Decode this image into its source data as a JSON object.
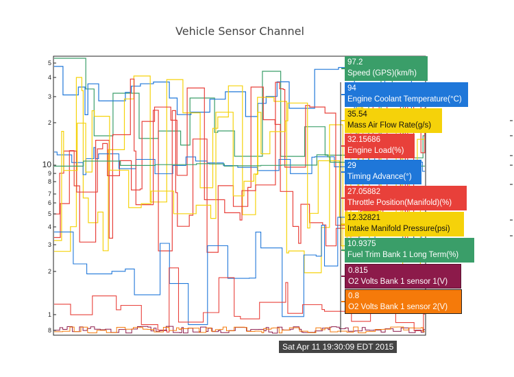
{
  "chart_data": {
    "type": "line",
    "title": "Vehicle Sensor Channel",
    "yscale": "log",
    "ylim": [
      0.75,
      5.6
    ],
    "minor_ticks": [
      "8",
      "1",
      "2",
      "3",
      "4",
      "5",
      "6",
      "7",
      "8",
      "9"
    ],
    "major_ticks": [
      "10"
    ],
    "upper_ticks": [
      "2",
      "3",
      "4",
      "5"
    ],
    "hover_time": "Sat Apr 11 19:30:09 EDT 2015",
    "series": [
      {
        "value": "97.2",
        "name": "Speed (GPS)(km/h)",
        "color": "#3a9e69",
        "text": "light-bg-no"
      },
      {
        "value": "94",
        "name": "Engine Coolant Temperature(°C)",
        "color": "#1f77d9",
        "text": "white"
      },
      {
        "value": "35.54",
        "name": "Mass Air Flow Rate(g/s)",
        "color": "#f5d20a",
        "text": "dark"
      },
      {
        "value": "32.15686",
        "name": "Engine Load(%)",
        "color": "#e8403a",
        "text": "white"
      },
      {
        "value": "29",
        "name": "Timing Advance(°)",
        "color": "#1f77d9",
        "text": "white"
      },
      {
        "value": "27.05882",
        "name": "Throttle Position(Manifold)(%)",
        "color": "#e8403a",
        "text": "white"
      },
      {
        "value": "12.32821",
        "name": "Intake Manifold Pressure(psi)",
        "color": "#f5d20a",
        "text": "dark"
      },
      {
        "value": "10.9375",
        "name": "Fuel Trim Bank 1 Long Term(%)",
        "color": "#3a9e69",
        "text": "white"
      },
      {
        "value": "0.815",
        "name": "O2 Volts Bank 1 sensor 1(V)",
        "color": "#8c1a4a",
        "text": "white"
      },
      {
        "value": "0.8",
        "name": "O2 Volts Bank 1 sensor 2(V)",
        "color": "#f57a0a",
        "text": "white"
      }
    ]
  }
}
